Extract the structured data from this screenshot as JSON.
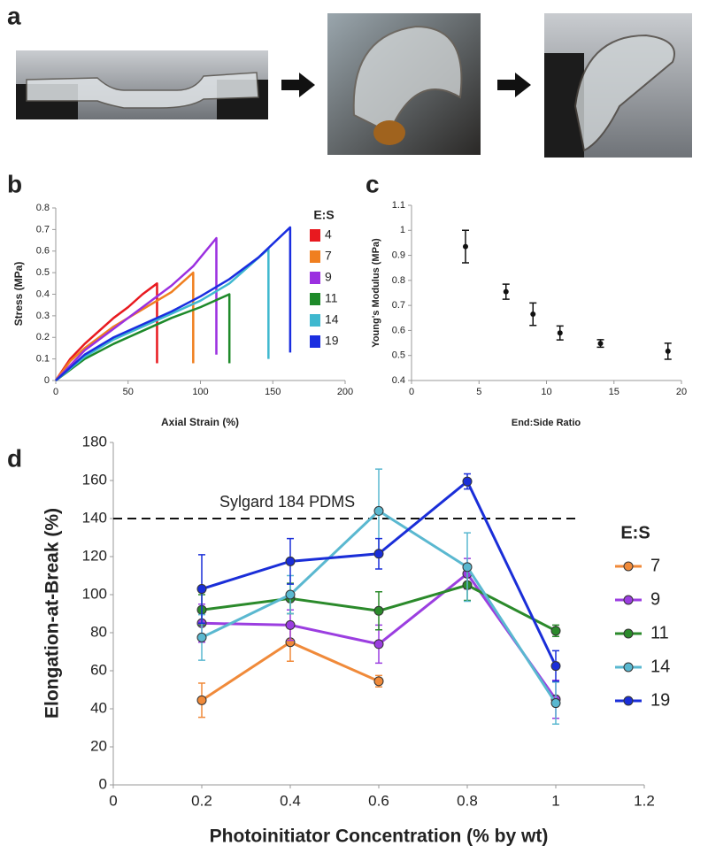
{
  "panel_labels": [
    "a",
    "b",
    "c",
    "d"
  ],
  "chart_data": [
    {
      "type": "line",
      "x_label": "Axial Strain (%)",
      "y_label": "Stress (MPa)",
      "legend_title": "E:S",
      "legend_style": "square",
      "xlim": [
        0,
        200
      ],
      "xticks": [
        0,
        50,
        100,
        150,
        200
      ],
      "ylim": [
        0,
        0.8
      ],
      "yticks": [
        0,
        0.1,
        0.2,
        0.3,
        0.4,
        0.5,
        0.6,
        0.7,
        0.8
      ],
      "series": [
        {
          "name": "4",
          "color": "#e8191f",
          "x": [
            0,
            10,
            20,
            30,
            40,
            50,
            60,
            70,
            70
          ],
          "values": [
            0,
            0.1,
            0.17,
            0.23,
            0.29,
            0.34,
            0.4,
            0.45,
            0.08
          ]
        },
        {
          "name": "7",
          "color": "#f07f1f",
          "x": [
            0,
            10,
            20,
            30,
            40,
            50,
            60,
            70,
            80,
            90,
            95,
            95
          ],
          "values": [
            0,
            0.09,
            0.15,
            0.2,
            0.25,
            0.29,
            0.33,
            0.37,
            0.41,
            0.47,
            0.5,
            0.08
          ]
        },
        {
          "name": "9",
          "color": "#9b30e0",
          "x": [
            0,
            20,
            40,
            60,
            80,
            95,
            111,
            111
          ],
          "values": [
            0,
            0.14,
            0.24,
            0.34,
            0.44,
            0.53,
            0.66,
            0.12
          ]
        },
        {
          "name": "11",
          "color": "#1e8a2a",
          "x": [
            0,
            20,
            40,
            60,
            80,
            100,
            120,
            120
          ],
          "values": [
            0,
            0.1,
            0.17,
            0.23,
            0.29,
            0.34,
            0.4,
            0.08
          ]
        },
        {
          "name": "14",
          "color": "#3fb8cf",
          "x": [
            0,
            20,
            40,
            60,
            80,
            100,
            120,
            147,
            147
          ],
          "values": [
            0,
            0.11,
            0.19,
            0.25,
            0.31,
            0.37,
            0.45,
            0.61,
            0.1
          ]
        },
        {
          "name": "19",
          "color": "#1a2ee0",
          "x": [
            0,
            20,
            40,
            60,
            80,
            100,
            120,
            140,
            162,
            162
          ],
          "values": [
            0,
            0.12,
            0.2,
            0.26,
            0.32,
            0.39,
            0.47,
            0.57,
            0.71,
            0.13
          ]
        }
      ]
    },
    {
      "type": "scatter",
      "x_label": "End:Side Ratio",
      "y_label": "Young's Modulus (MPa)",
      "color": "#111111",
      "xlim": [
        0,
        20
      ],
      "xticks": [
        0,
        5,
        10,
        15,
        20
      ],
      "ylim": [
        0.4,
        1.1
      ],
      "yticks": [
        0.4,
        0.5,
        0.6,
        0.7,
        0.8,
        0.9,
        1,
        1.1
      ],
      "x": [
        4,
        7,
        9,
        11,
        14,
        19
      ],
      "values": [
        0.935,
        0.755,
        0.665,
        0.59,
        0.548,
        0.517
      ],
      "errors": [
        0.065,
        0.03,
        0.045,
        0.028,
        0.015,
        0.032
      ]
    },
    {
      "type": "line",
      "markers": true,
      "x_label": "Photoinitiator Concentration (% by wt)",
      "y_label": "Elongation-at-Break (%)",
      "legend_title": "E:S",
      "legend_style": "line",
      "xlim": [
        0,
        1.2
      ],
      "xticks": [
        0,
        0.2,
        0.4,
        0.6,
        0.8,
        1,
        1.2
      ],
      "ylim": [
        0,
        180
      ],
      "yticks": [
        0,
        20,
        40,
        60,
        80,
        100,
        120,
        140,
        160,
        180
      ],
      "hlines": [
        {
          "value": 140,
          "label": "Sylgard 184 PDMS"
        }
      ],
      "x": [
        0.2,
        0.4,
        0.6,
        0.8,
        1
      ],
      "series": [
        {
          "name": "7",
          "color": "#f08a3a",
          "values": [
            44.5,
            75,
            54.5,
            null,
            null
          ],
          "errors": [
            9,
            10,
            3,
            null,
            null
          ]
        },
        {
          "name": "9",
          "color": "#9b3ee0",
          "values": [
            85,
            84,
            74,
            111,
            45
          ],
          "errors": [
            10,
            8,
            10,
            8,
            10
          ]
        },
        {
          "name": "11",
          "color": "#2b8a2b",
          "values": [
            92,
            98,
            91.5,
            105,
            81
          ],
          "errors": [
            8,
            8,
            10,
            8,
            3
          ]
        },
        {
          "name": "14",
          "color": "#5ab8d0",
          "values": [
            77.5,
            100,
            144,
            114.5,
            43
          ],
          "errors": [
            12,
            10,
            22,
            18,
            11
          ]
        },
        {
          "name": "19",
          "color": "#1a2ed8",
          "values": [
            103,
            117.5,
            121.5,
            159.5,
            62.5
          ],
          "errors": [
            18,
            12,
            8,
            4,
            8
          ]
        }
      ]
    }
  ]
}
